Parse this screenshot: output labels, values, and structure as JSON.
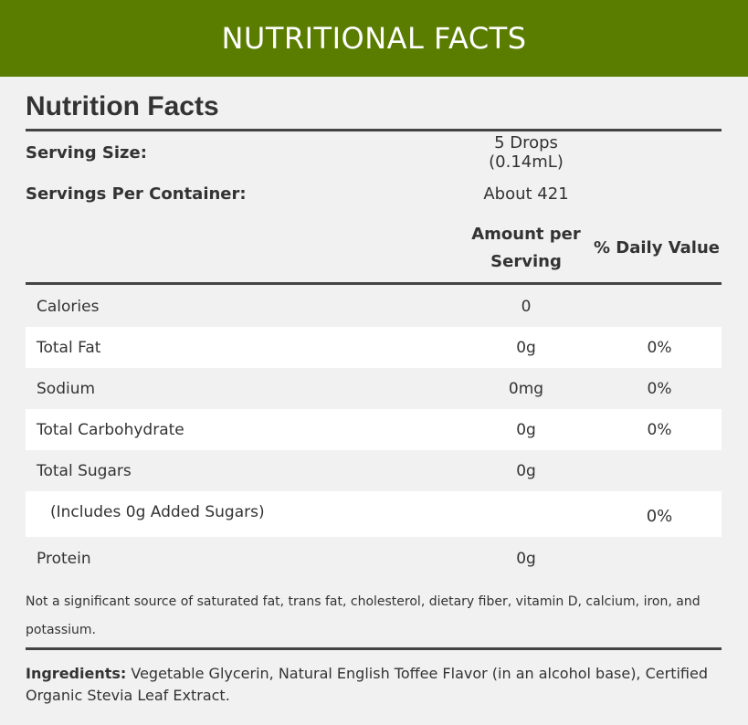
{
  "banner": {
    "title": "NUTRITIONAL FACTS"
  },
  "panel": {
    "title": "Nutrition Facts",
    "serving_size": {
      "label": "Serving Size:",
      "value": "5 Drops (0.14mL)"
    },
    "servings_per_container": {
      "label": "Servings Per Container:",
      "value": "About 421"
    },
    "headers": {
      "amount_line1": "Amount per",
      "amount_line2": "Serving",
      "daily_value": "% Daily Value"
    },
    "rows": [
      {
        "name": "Calories",
        "amount": "0",
        "dv": ""
      },
      {
        "name": "Total Fat",
        "amount": "0g",
        "dv": "0%"
      },
      {
        "name": "Sodium",
        "amount": "0mg",
        "dv": "0%"
      },
      {
        "name": "Total Carbohydrate",
        "amount": "0g",
        "dv": "0%"
      },
      {
        "name": "Total Sugars",
        "amount": "0g",
        "dv": ""
      },
      {
        "name": "(Includes 0g Added Sugars)",
        "amount": "",
        "dv": "0%"
      },
      {
        "name": "Protein",
        "amount": "0g",
        "dv": ""
      }
    ],
    "note": "Not a significant source of saturated fat, trans fat, cholesterol, dietary fiber, vitamin D, calcium, iron, and potassium.",
    "ingredients_label": "Ingredients:",
    "ingredients_text": " Vegetable Glycerin, Natural English Toffee Flavor (in an alcohol base), Certified Organic Stevia Leaf Extract."
  }
}
